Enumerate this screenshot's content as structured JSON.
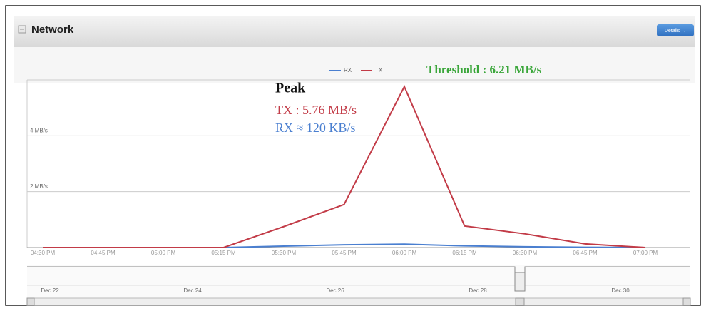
{
  "panel": {
    "title": "Network",
    "button": "Details →"
  },
  "chart_data": {
    "type": "line",
    "threshold": "Threshold : 6.21 MB/s",
    "annotations": [
      "Peak",
      "TX : 5.76 MB/s",
      "RX ≈ 120 KB/s"
    ],
    "categories": [
      "04:30 PM",
      "04:45 PM",
      "05:00 PM",
      "05:15 PM",
      "05:30 PM",
      "05:45 PM",
      "06:00 PM",
      "06:15 PM",
      "06:30 PM",
      "06:45 PM",
      "07:00 PM"
    ],
    "series": [
      {
        "name": "RX",
        "color": "#4a7fd0",
        "values": [
          0,
          0,
          0,
          0,
          0.05,
          0.1,
          0.12,
          0.06,
          0.03,
          0.01,
          0
        ]
      },
      {
        "name": "TX",
        "color": "#c23b47",
        "values": [
          0,
          0,
          0,
          0,
          0.75,
          1.54,
          5.76,
          0.77,
          0.49,
          0.13,
          0
        ]
      }
    ],
    "ylim": [
      0,
      6
    ],
    "yticks": [
      {
        "value": 2,
        "label": "2 MB/s"
      },
      {
        "value": 4,
        "label": "4 MB/s"
      }
    ],
    "grid": true
  },
  "navigator": {
    "labels": [
      "Dec 22",
      "Dec 24",
      "Dec 26",
      "Dec 28",
      "Dec 30"
    ]
  }
}
